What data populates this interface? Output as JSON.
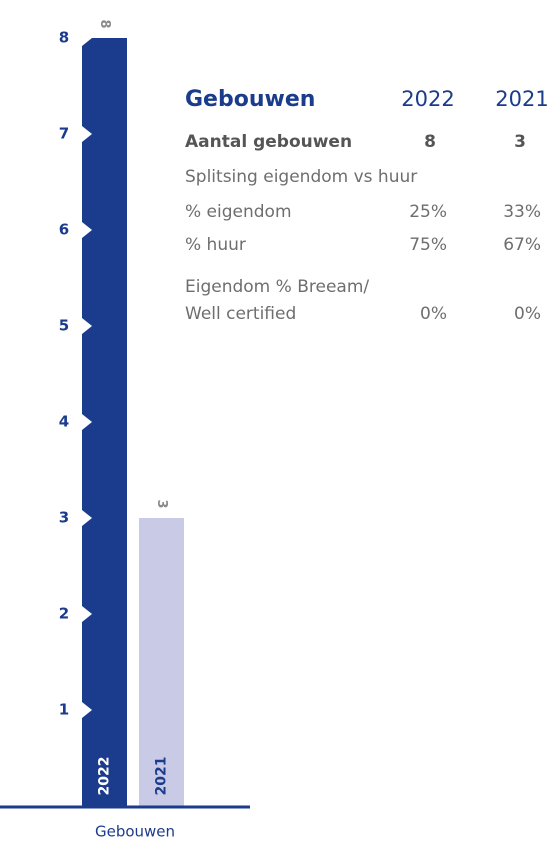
{
  "chart_data": {
    "type": "bar",
    "categories": [
      "2022",
      "2021"
    ],
    "values": [
      8,
      3
    ],
    "colors": [
      "#1b3c8c",
      "#c9cae6"
    ],
    "ylim": [
      0,
      8
    ],
    "yticks": [
      1,
      2,
      3,
      4,
      5,
      6,
      7,
      8
    ],
    "xlabel": "Gebouwen"
  },
  "table": {
    "title": "Gebouwen",
    "columns": [
      "2022",
      "2021"
    ],
    "rows": [
      {
        "label": "Aantal gebouwen",
        "values": [
          "8",
          "3"
        ]
      },
      {
        "label": "Splitsing eigendom vs huur"
      },
      {
        "label": "% eigendom",
        "values": [
          "25%",
          "33%"
        ]
      },
      {
        "label": "% huur",
        "values": [
          "75%",
          "67%"
        ]
      },
      {
        "label": [
          "Eigendom % Breeam/",
          "Well certified"
        ],
        "values": [
          "0%",
          "0%"
        ]
      }
    ]
  }
}
